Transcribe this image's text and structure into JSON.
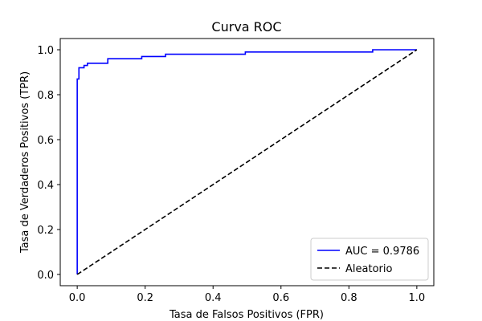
{
  "chart_data": {
    "type": "line",
    "title": "Curva ROC",
    "xlabel": "Tasa de Falsos Positivos (FPR)",
    "ylabel": "Tasa de Verdaderos Positivos (TPR)",
    "xlim": [
      -0.05,
      1.05
    ],
    "ylim": [
      -0.05,
      1.05
    ],
    "xticks": [
      "0.0",
      "0.2",
      "0.4",
      "0.6",
      "0.8",
      "1.0"
    ],
    "yticks": [
      "0.0",
      "0.2",
      "0.4",
      "0.6",
      "0.8",
      "1.0"
    ],
    "grid": false,
    "legend_position": "lower-right",
    "series": [
      {
        "name": "AUC = 0.9786",
        "color": "#0000ff",
        "style": "solid",
        "x": [
          0.0,
          0.0,
          0.005,
          0.005,
          0.01,
          0.01,
          0.02,
          0.02,
          0.03,
          0.03,
          0.09,
          0.09,
          0.19,
          0.19,
          0.26,
          0.26,
          0.495,
          0.495,
          0.87,
          0.87,
          1.0
        ],
        "y": [
          0.0,
          0.87,
          0.87,
          0.92,
          0.92,
          0.92,
          0.92,
          0.93,
          0.93,
          0.94,
          0.94,
          0.96,
          0.96,
          0.97,
          0.97,
          0.98,
          0.98,
          0.99,
          0.99,
          1.0,
          1.0
        ]
      },
      {
        "name": "Aleatorio",
        "color": "#000000",
        "style": "dashed",
        "x": [
          0.0,
          1.0
        ],
        "y": [
          0.0,
          1.0
        ]
      }
    ]
  }
}
